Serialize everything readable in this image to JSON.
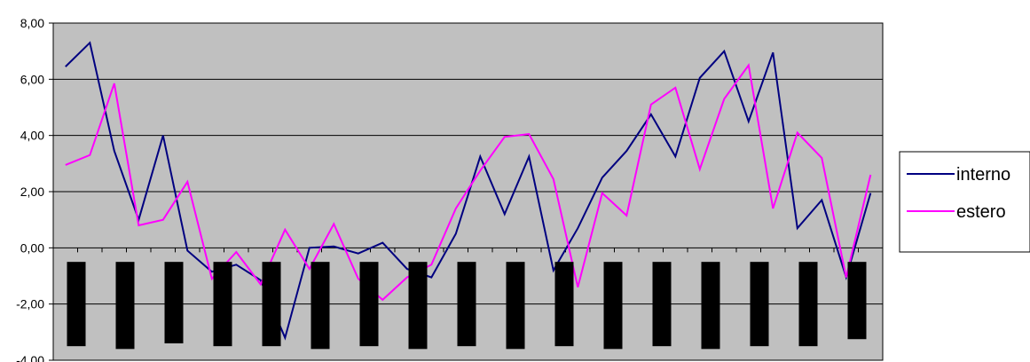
{
  "chart_data": {
    "type": "line",
    "title": "",
    "xlabel": "",
    "ylabel": "",
    "ylim": [
      -4,
      8
    ],
    "yticks": [
      "8,00",
      "6,00",
      "4,00",
      "2,00",
      "0,00",
      "-2,00",
      "-4,00"
    ],
    "ytick_values": [
      8,
      6,
      4,
      2,
      0,
      -2,
      -4
    ],
    "grid": true,
    "legend_position": "right",
    "plot_background": "#c0c0c0",
    "series": [
      {
        "name": "interno",
        "color": "#000080",
        "values": [
          6.45,
          7.3,
          3.45,
          1.0,
          4.0,
          -0.1,
          -0.85,
          -0.6,
          -1.15,
          -3.2,
          -0.0,
          0.05,
          -0.2,
          0.18,
          -0.75,
          -1.05,
          0.5,
          3.25,
          1.2,
          3.25,
          -0.8,
          0.7,
          2.5,
          3.45,
          4.75,
          3.25,
          6.05,
          7.0,
          4.5,
          6.95,
          0.7,
          1.7,
          -1.05,
          1.95
        ]
      },
      {
        "name": "estero",
        "color": "#ff00ff",
        "values": [
          2.95,
          3.3,
          5.85,
          0.8,
          1.0,
          2.35,
          -1.1,
          -0.15,
          -1.3,
          0.65,
          -0.75,
          0.85,
          -1.1,
          -1.85,
          -1.05,
          -0.6,
          1.4,
          2.75,
          3.95,
          4.05,
          2.45,
          -1.4,
          1.95,
          1.15,
          5.1,
          5.7,
          2.8,
          5.3,
          6.5,
          1.4,
          4.1,
          3.2,
          -1.05,
          2.6
        ]
      }
    ],
    "bars": {
      "color": "#000000",
      "count": 17,
      "top": -0.5,
      "bottoms": [
        -3.5,
        -3.6,
        -3.4,
        -3.5,
        -3.5,
        -3.6,
        -3.5,
        -3.6,
        -3.5,
        -3.6,
        -3.5,
        -3.6,
        -3.5,
        -3.6,
        -3.5,
        -3.5,
        -3.25
      ]
    }
  }
}
